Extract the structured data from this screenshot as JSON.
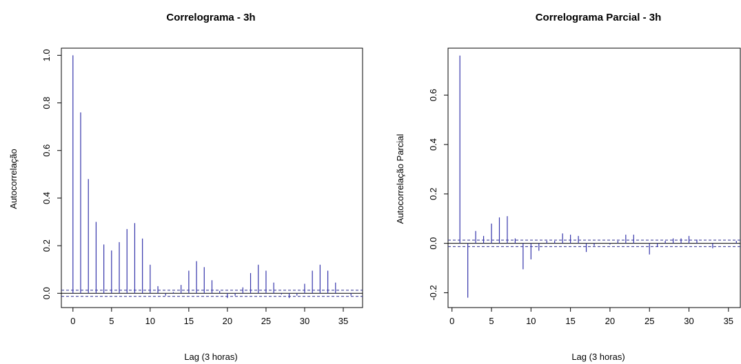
{
  "chart_data": [
    {
      "type": "bar",
      "title": "Correlograma - 3h",
      "xlabel": "Lag (3 horas)",
      "ylabel": "Autocorrelação",
      "xlim": [
        -1.5,
        37.5
      ],
      "ylim": [
        -0.06,
        1.03
      ],
      "xticks": [
        "0",
        "5",
        "10",
        "15",
        "20",
        "25",
        "30",
        "35"
      ],
      "yticks": [
        "0.0",
        "0.2",
        "0.4",
        "0.6",
        "0.8",
        "1.0"
      ],
      "ci": 0.013,
      "lags": [
        0,
        1,
        2,
        3,
        4,
        5,
        6,
        7,
        8,
        9,
        10,
        11,
        12,
        13,
        14,
        15,
        16,
        17,
        18,
        19,
        20,
        21,
        22,
        23,
        24,
        25,
        26,
        27,
        28,
        29,
        30,
        31,
        32,
        33,
        34,
        35,
        36
      ],
      "values": [
        1.0,
        0.76,
        0.48,
        0.3,
        0.205,
        0.18,
        0.215,
        0.27,
        0.295,
        0.23,
        0.12,
        0.03,
        -0.01,
        0.005,
        0.035,
        0.095,
        0.135,
        0.11,
        0.055,
        0.01,
        -0.02,
        -0.01,
        0.025,
        0.085,
        0.12,
        0.095,
        0.045,
        -0.005,
        -0.02,
        -0.01,
        0.04,
        0.095,
        0.12,
        0.095,
        0.045,
        0.0,
        -0.01
      ]
    },
    {
      "type": "bar",
      "title": "Correlograma Parcial - 3h",
      "xlabel": "Lag (3 horas)",
      "ylabel": "Autocorrelação Parcial",
      "xlim": [
        -0.5,
        36.5
      ],
      "ylim": [
        -0.26,
        0.79
      ],
      "xticks": [
        "0",
        "5",
        "10",
        "15",
        "20",
        "25",
        "30",
        "35"
      ],
      "yticks": [
        "-0.2",
        "0.0",
        "0.2",
        "0.4",
        "0.6"
      ],
      "ci": 0.013,
      "lags": [
        1,
        2,
        3,
        4,
        5,
        6,
        7,
        8,
        9,
        10,
        11,
        12,
        13,
        14,
        15,
        16,
        17,
        18,
        19,
        20,
        21,
        22,
        23,
        24,
        25,
        26,
        27,
        28,
        29,
        30,
        31,
        32,
        33,
        34,
        35,
        36
      ],
      "values": [
        0.76,
        -0.22,
        0.05,
        0.03,
        0.08,
        0.105,
        0.11,
        0.02,
        -0.105,
        -0.065,
        -0.03,
        0.01,
        0.01,
        0.04,
        0.035,
        0.03,
        -0.035,
        -0.01,
        0.0,
        -0.005,
        0.01,
        0.035,
        0.035,
        0.0,
        -0.045,
        -0.015,
        0.01,
        0.02,
        0.02,
        0.03,
        0.015,
        0.0,
        -0.02,
        0.0,
        0.0,
        0.01
      ]
    }
  ]
}
